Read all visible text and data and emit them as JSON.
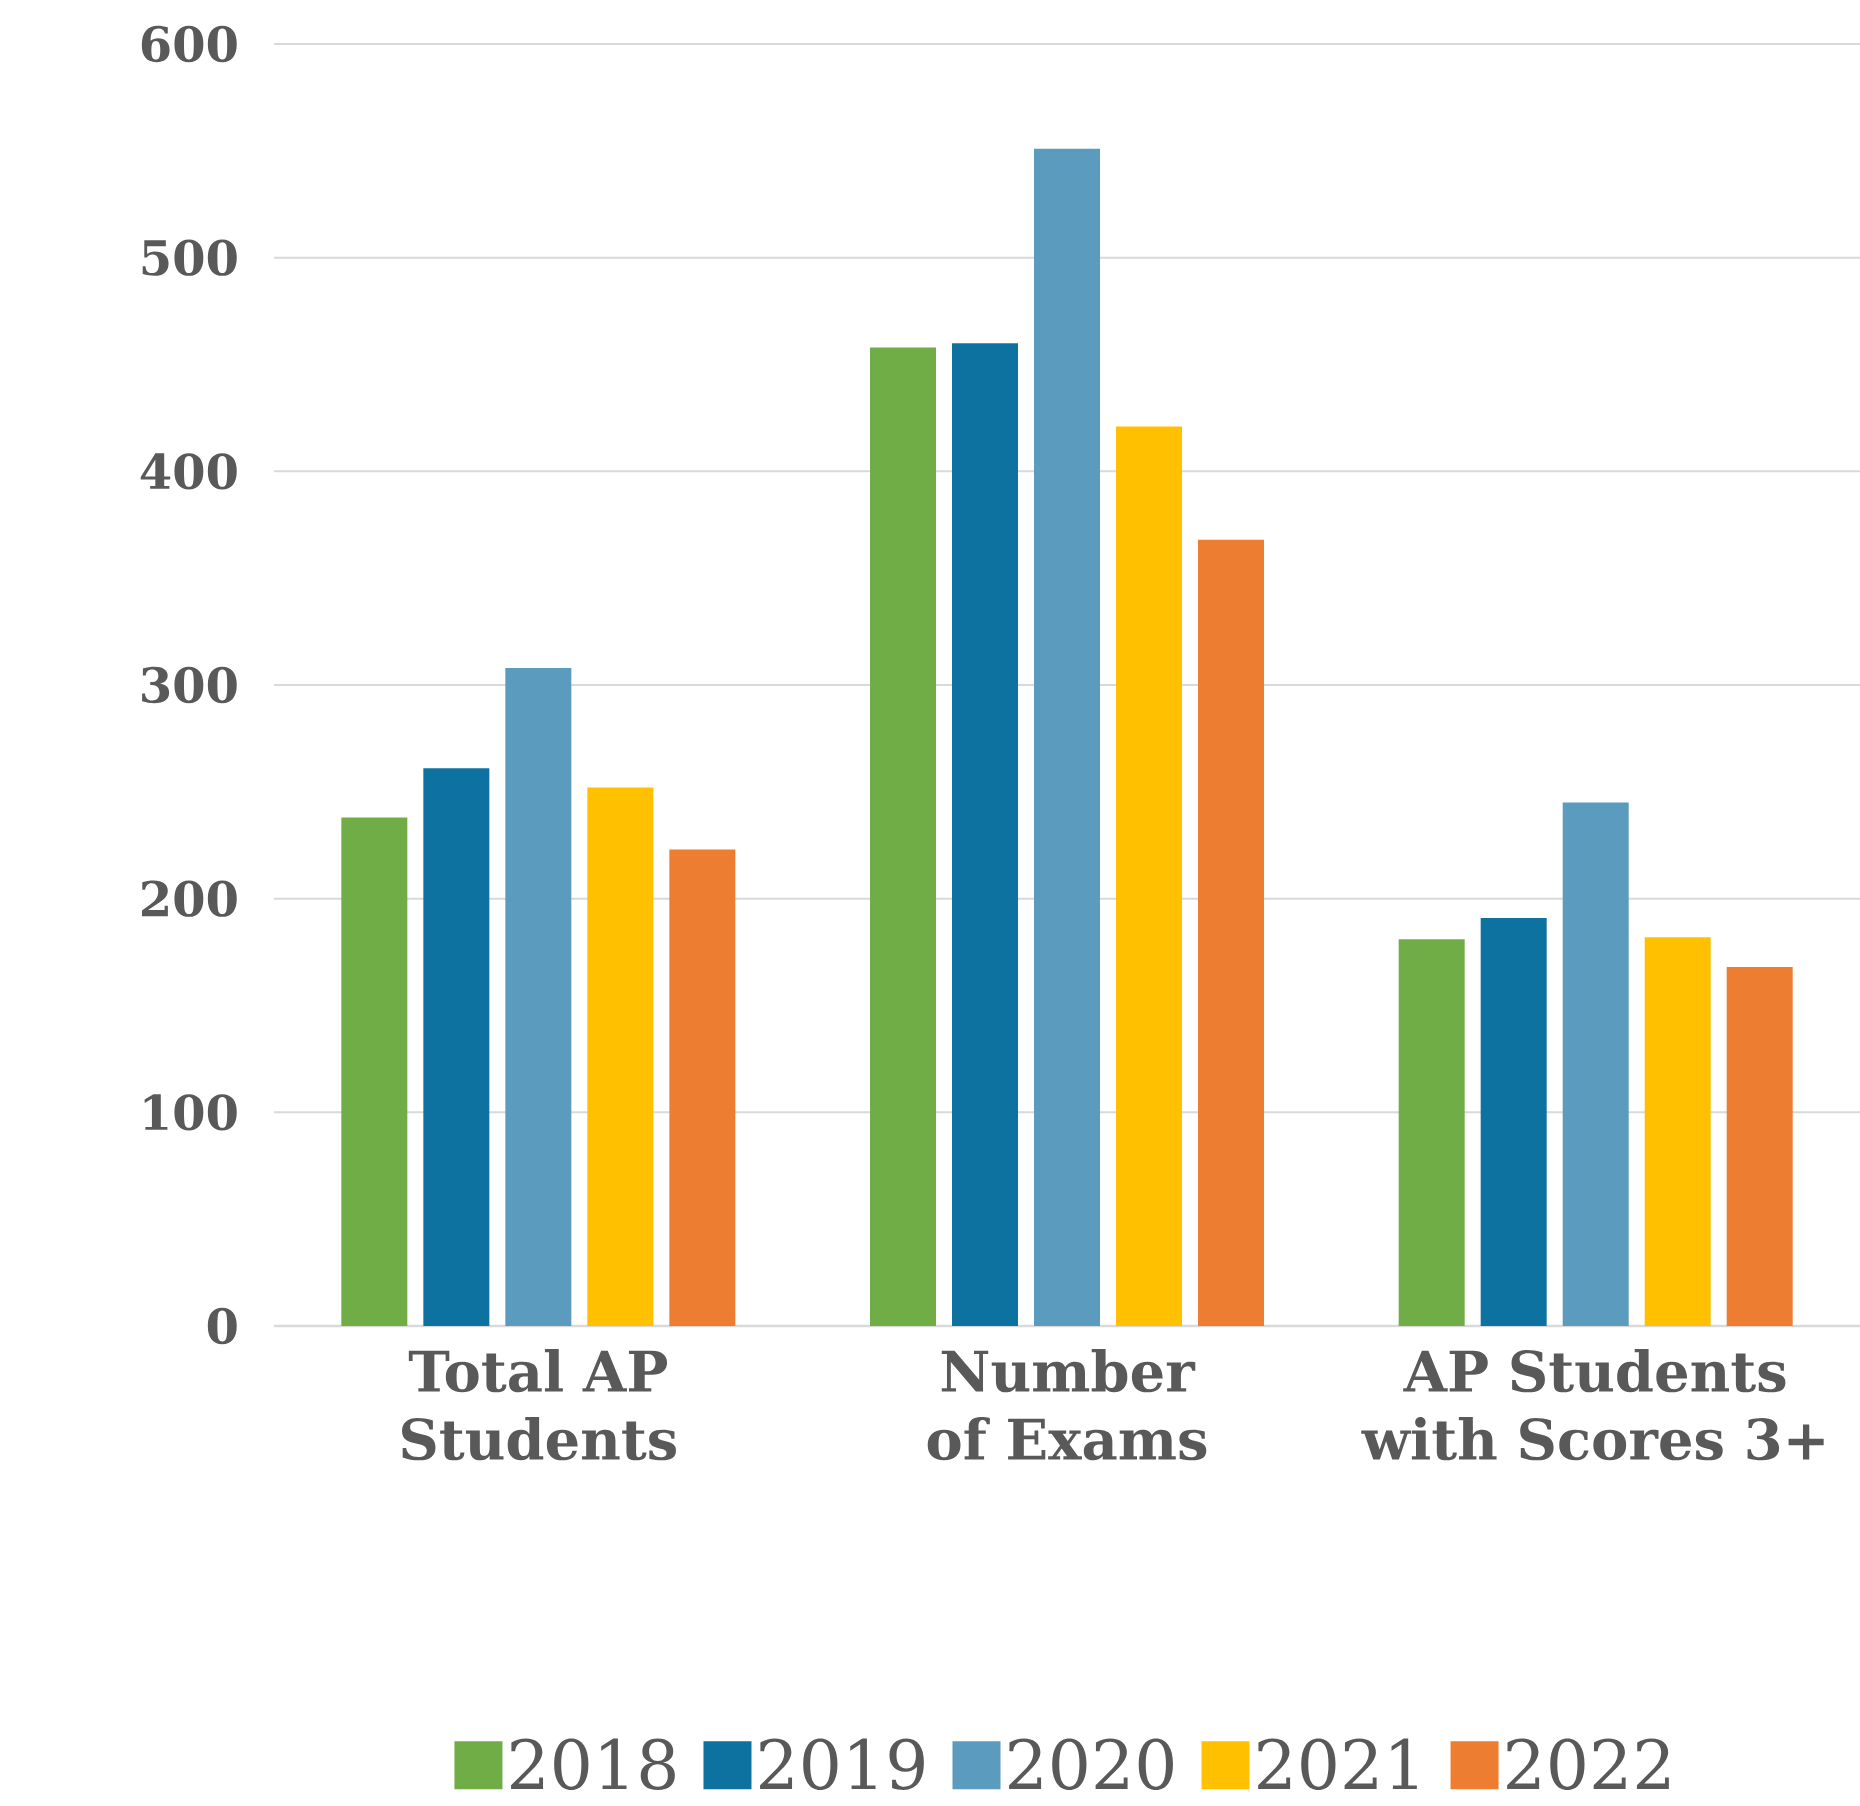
{
  "chart_data": {
    "type": "bar",
    "categories": [
      "Total AP Students",
      "Number of Exams",
      "AP Students with Scores 3+"
    ],
    "series": [
      {
        "name": "2018",
        "color": "#70ad47",
        "values": [
          238,
          458,
          181
        ]
      },
      {
        "name": "2019",
        "color": "#0e72a0",
        "values": [
          261,
          460,
          191
        ]
      },
      {
        "name": "2020",
        "color": "#5b9bbd",
        "values": [
          308,
          551,
          245
        ]
      },
      {
        "name": "2021",
        "color": "#ffc000",
        "values": [
          252,
          421,
          182
        ]
      },
      {
        "name": "2022",
        "color": "#ed7d31",
        "values": [
          223,
          368,
          168
        ]
      }
    ],
    "ylim": [
      0,
      600
    ],
    "yticks": [
      0,
      100,
      200,
      300,
      400,
      500,
      600
    ],
    "grid": "y",
    "legend": "bottom"
  }
}
